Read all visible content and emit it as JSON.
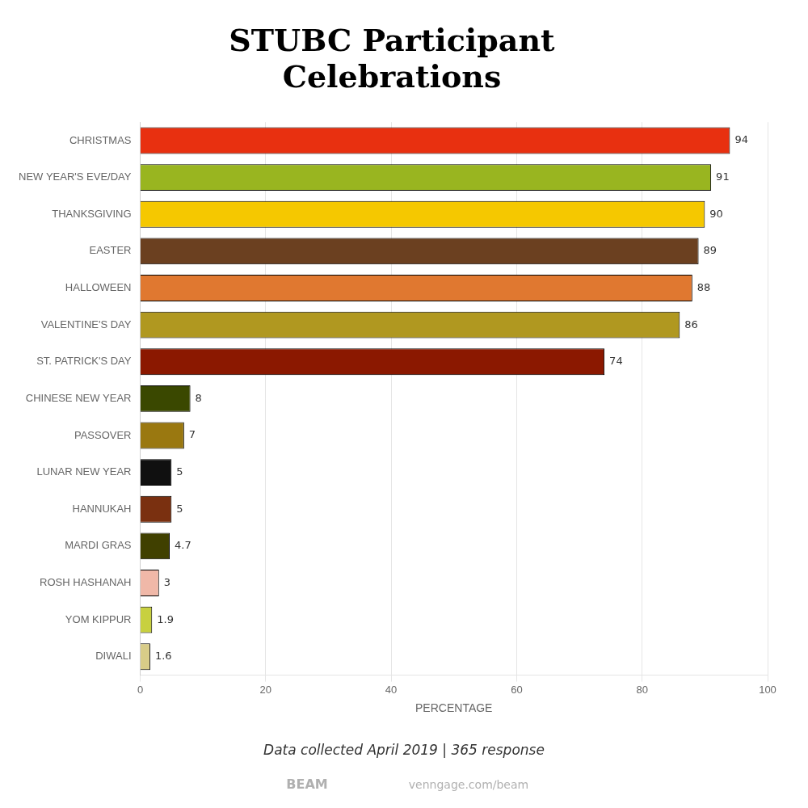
{
  "chart_data": {
    "type": "bar",
    "orientation": "horizontal",
    "title": "STUBC Participant\nCelebrations",
    "categories": [
      "CHRISTMAS",
      "NEW YEAR'S EVE/DAY",
      "THANKSGIVING",
      "EASTER",
      "HALLOWEEN",
      "VALENTINE'S DAY",
      "ST. PATRICK'S DAY",
      "CHINESE NEW YEAR",
      "PASSOVER",
      "LUNAR NEW YEAR",
      "HANNUKAH",
      "MARDI GRAS",
      "ROSH HASHANAH",
      "YOM KIPPUR",
      "DIWALI"
    ],
    "values": [
      94,
      91,
      90,
      89,
      88,
      86,
      74,
      8,
      7,
      5,
      5,
      4.7,
      3,
      1.9,
      1.6
    ],
    "colors": [
      "#e83010",
      "#99b520",
      "#f5c800",
      "#6b4020",
      "#e07830",
      "#b09820",
      "#8b1800",
      "#3a4800",
      "#9a7810",
      "#101010",
      "#7a3010",
      "#404000",
      "#f0b8a8",
      "#c8d040",
      "#d8cc88"
    ],
    "xlabel": "PERCENTAGE",
    "xlim": [
      0,
      100
    ],
    "xticks": [
      0,
      20,
      40,
      60,
      80,
      100
    ],
    "grid": true,
    "data_labels": true,
    "annotations": [
      "Data collected April 2019 | 365 response",
      "BEAM",
      "venngage.com/beam"
    ]
  }
}
